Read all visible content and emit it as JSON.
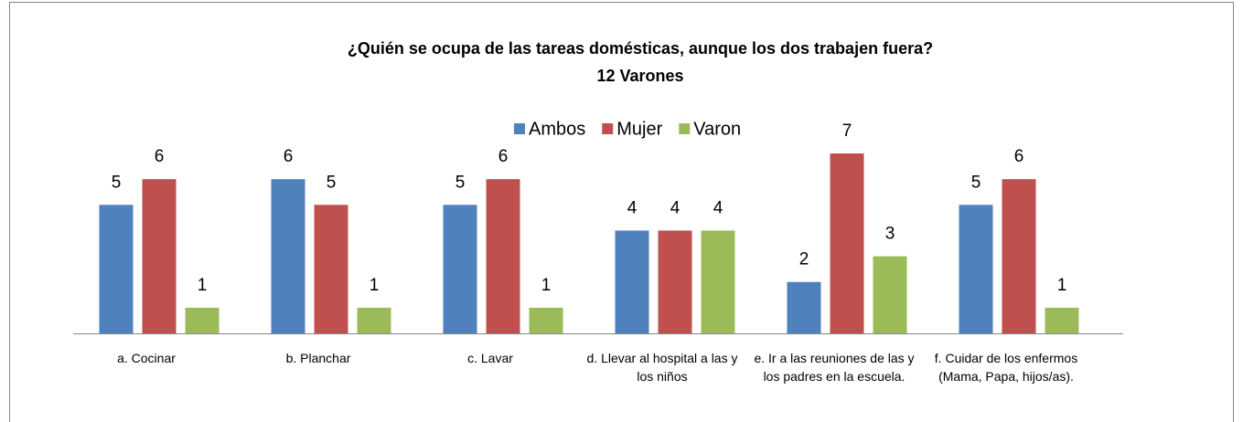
{
  "chart_data": {
    "type": "bar",
    "title": "¿Quién se ocupa de las tareas domésticas, aunque los dos trabajen fuera?",
    "subtitle": "12 Varones",
    "categories": [
      "a. Cocinar",
      "b. Planchar",
      "c. Lavar",
      "d. Llevar al hospital a las y los niños",
      "e. Ir a las reuniones de las y los padres en la escuela.",
      "f. Cuidar de los enfermos (Mama, Papa, hijos/as)."
    ],
    "series": [
      {
        "name": "Ambos",
        "color": "#4f81bd",
        "values": [
          5,
          6,
          5,
          4,
          2,
          5
        ]
      },
      {
        "name": "Mujer",
        "color": "#c0504d",
        "values": [
          6,
          5,
          6,
          4,
          7,
          6
        ]
      },
      {
        "name": "Varon",
        "color": "#9bbb59",
        "values": [
          1,
          1,
          1,
          4,
          3,
          1
        ]
      }
    ],
    "legend": "top"
  }
}
